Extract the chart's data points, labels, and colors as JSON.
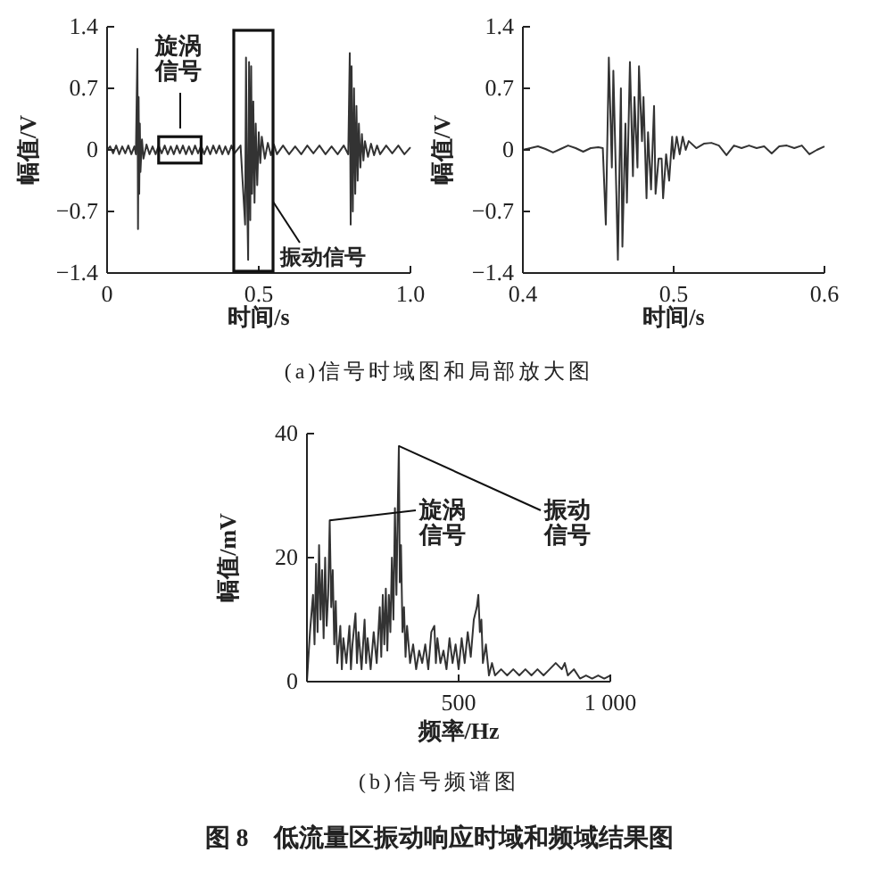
{
  "chart_data": [
    {
      "type": "line",
      "ylabel": "幅值/V",
      "xlabel": "时间/s",
      "xlim": [
        0,
        1.0
      ],
      "ylim": [
        -1.4,
        1.4
      ],
      "xticks": [
        0,
        0.5,
        {
          "value": 1.0,
          "label": "1.0"
        }
      ],
      "yticks": [
        -1.4,
        -0.7,
        0,
        0.7,
        1.4
      ],
      "marker": "none",
      "series": [
        {
          "color": "#333333",
          "x": [
            0,
            0.01,
            0.02,
            0.03,
            0.04,
            0.05,
            0.06,
            0.07,
            0.08,
            0.09,
            0.095,
            0.1,
            0.102,
            0.104,
            0.106,
            0.108,
            0.11,
            0.115,
            0.12,
            0.13,
            0.14,
            0.15,
            0.16,
            0.17,
            0.18,
            0.19,
            0.2,
            0.21,
            0.22,
            0.23,
            0.24,
            0.25,
            0.26,
            0.27,
            0.28,
            0.29,
            0.3,
            0.31,
            0.32,
            0.33,
            0.34,
            0.35,
            0.36,
            0.37,
            0.38,
            0.39,
            0.4,
            0.41,
            0.42,
            0.44,
            0.455,
            0.458,
            0.462,
            0.465,
            0.468,
            0.472,
            0.475,
            0.478,
            0.482,
            0.486,
            0.49,
            0.495,
            0.5,
            0.505,
            0.51,
            0.52,
            0.53,
            0.54,
            0.55,
            0.56,
            0.58,
            0.6,
            0.62,
            0.64,
            0.66,
            0.68,
            0.7,
            0.72,
            0.74,
            0.76,
            0.78,
            0.795,
            0.8,
            0.803,
            0.806,
            0.81,
            0.814,
            0.818,
            0.822,
            0.826,
            0.83,
            0.835,
            0.84,
            0.845,
            0.85,
            0.86,
            0.87,
            0.88,
            0.89,
            0.9,
            0.92,
            0.94,
            0.96,
            0.98,
            1.0
          ],
          "values": [
            0,
            0.04,
            -0.04,
            0.05,
            -0.05,
            0.04,
            -0.04,
            0.05,
            -0.05,
            0.04,
            -0.05,
            1.15,
            -0.9,
            0.6,
            -0.5,
            0.3,
            -0.25,
            0.12,
            -0.1,
            0.06,
            -0.05,
            0.04,
            -0.05,
            0.05,
            -0.04,
            0.05,
            -0.05,
            0.04,
            -0.05,
            0.05,
            -0.04,
            0.05,
            -0.05,
            0.04,
            -0.05,
            0.05,
            -0.04,
            0.05,
            -0.05,
            0.04,
            -0.05,
            0.05,
            -0.04,
            0.05,
            -0.05,
            0.04,
            -0.05,
            0.05,
            -0.04,
            0.05,
            -0.85,
            1.05,
            -0.6,
            -1.25,
            1.0,
            -0.8,
            0.95,
            -0.5,
            0.55,
            -0.6,
            0.3,
            -0.4,
            0.2,
            -0.15,
            0.15,
            -0.1,
            0.08,
            -0.06,
            0.06,
            -0.05,
            0.05,
            -0.05,
            0.04,
            -0.05,
            0.05,
            -0.04,
            0.05,
            -0.05,
            0.04,
            -0.05,
            0.05,
            -0.05,
            1.1,
            -0.85,
            0.95,
            -0.7,
            0.7,
            -0.5,
            0.5,
            -0.35,
            0.3,
            -0.2,
            0.18,
            -0.12,
            0.1,
            -0.08,
            0.07,
            -0.06,
            0.05,
            -0.05,
            0.05,
            -0.04,
            0.05,
            -0.05,
            0.03
          ]
        }
      ],
      "annotations": [
        {
          "text": "旋涡信号",
          "x": 0.24,
          "y": 0
        },
        "振动信号",
        "(a)信号时域图和局部放大图"
      ]
    },
    {
      "type": "line",
      "ylabel": "幅值/V",
      "xlabel": "时间/s",
      "xlim": [
        0.4,
        0.6
      ],
      "ylim": [
        -1.4,
        1.4
      ],
      "xticks": [
        0.4,
        0.5,
        0.6
      ],
      "yticks": [
        -1.4,
        -0.7,
        0,
        0.7,
        1.4
      ],
      "marker": "none",
      "series": [
        {
          "color": "#333333",
          "x": [
            0.4,
            0.405,
            0.41,
            0.415,
            0.42,
            0.425,
            0.43,
            0.435,
            0.44,
            0.445,
            0.45,
            0.453,
            0.455,
            0.457,
            0.459,
            0.46,
            0.462,
            0.463,
            0.465,
            0.466,
            0.468,
            0.469,
            0.471,
            0.473,
            0.474,
            0.476,
            0.477,
            0.479,
            0.48,
            0.482,
            0.483,
            0.485,
            0.487,
            0.488,
            0.49,
            0.492,
            0.493,
            0.495,
            0.497,
            0.499,
            0.5,
            0.502,
            0.504,
            0.506,
            0.508,
            0.51,
            0.515,
            0.52,
            0.525,
            0.53,
            0.535,
            0.54,
            0.545,
            0.55,
            0.555,
            0.56,
            0.565,
            0.57,
            0.575,
            0.58,
            0.585,
            0.59,
            0.595,
            0.6
          ],
          "values": [
            0,
            0.02,
            0.04,
            0.01,
            -0.03,
            0.01,
            0.05,
            0.02,
            -0.02,
            0.02,
            0.03,
            0.02,
            -0.85,
            1.05,
            -0.2,
            0.9,
            -0.5,
            -1.25,
            0.7,
            -1.1,
            0.3,
            -0.6,
            1.0,
            -0.3,
            0.6,
            -0.2,
            0.95,
            0.1,
            0.6,
            -0.55,
            0.2,
            -0.45,
            0.5,
            -0.5,
            -0.1,
            -0.1,
            -0.55,
            -0.05,
            -0.35,
            0.15,
            -0.1,
            0.15,
            -0.05,
            0.15,
            0,
            0.1,
            0.02,
            0.07,
            0.08,
            0.05,
            -0.06,
            0.05,
            0.02,
            0.05,
            0.02,
            0.04,
            -0.04,
            0.04,
            0.05,
            0.02,
            0.05,
            -0.05,
            0,
            0.04
          ]
        }
      ]
    },
    {
      "type": "line",
      "ylabel": "幅值/mV",
      "xlabel": "频率/Hz",
      "xlim": [
        0,
        1000
      ],
      "ylim": [
        0,
        40
      ],
      "xticks": [
        500,
        {
          "value": 1000,
          "label": "1 000"
        }
      ],
      "yticks": [
        0,
        20,
        40
      ],
      "marker": "none",
      "series": [
        {
          "color": "#333333",
          "x": [
            0,
            10,
            20,
            25,
            30,
            35,
            40,
            45,
            50,
            55,
            60,
            65,
            70,
            75,
            80,
            85,
            90,
            95,
            100,
            110,
            115,
            120,
            130,
            140,
            145,
            150,
            160,
            165,
            170,
            180,
            190,
            195,
            200,
            210,
            220,
            230,
            240,
            245,
            250,
            255,
            260,
            265,
            270,
            275,
            280,
            285,
            290,
            295,
            300,
            303,
            306,
            310,
            315,
            320,
            325,
            330,
            340,
            350,
            360,
            370,
            380,
            390,
            400,
            410,
            420,
            425,
            430,
            440,
            450,
            460,
            470,
            480,
            490,
            500,
            510,
            520,
            530,
            540,
            550,
            560,
            565,
            570,
            575,
            580,
            590,
            600,
            610,
            620,
            640,
            660,
            680,
            700,
            720,
            740,
            760,
            780,
            800,
            820,
            840,
            850,
            860,
            880,
            900,
            920,
            940,
            960,
            980,
            1000
          ],
          "values": [
            0,
            8,
            14,
            6,
            19,
            8,
            22,
            10,
            18,
            7,
            20,
            9,
            14,
            26,
            12,
            18,
            6,
            13,
            3,
            9,
            2,
            7,
            3,
            9,
            2,
            6,
            11,
            3,
            8,
            2,
            10,
            3,
            7,
            2,
            8,
            3,
            12,
            4,
            14,
            6,
            15,
            5,
            14,
            8,
            20,
            10,
            28,
            14,
            30,
            38,
            16,
            22,
            8,
            12,
            4,
            9,
            3,
            6,
            2,
            5,
            3,
            6,
            2,
            8,
            9,
            3,
            7,
            3,
            5,
            2,
            7,
            3,
            6,
            2,
            7,
            3,
            8,
            4,
            10,
            12,
            14,
            8,
            10,
            3,
            6,
            1,
            3,
            1,
            2,
            1,
            2,
            1,
            2,
            1,
            2,
            1,
            2,
            3,
            2,
            3,
            1,
            2,
            0.5,
            1,
            0.5,
            1,
            0.5,
            1
          ]
        }
      ],
      "annotations": [
        {
          "text": "旋涡信号",
          "x": 75,
          "y": 26
        },
        {
          "text": "振动信号",
          "x": 303,
          "y": 38
        },
        "(b)信号频谱图",
        "图 8　低流量区振动响应时域和频域结果图"
      ]
    }
  ]
}
